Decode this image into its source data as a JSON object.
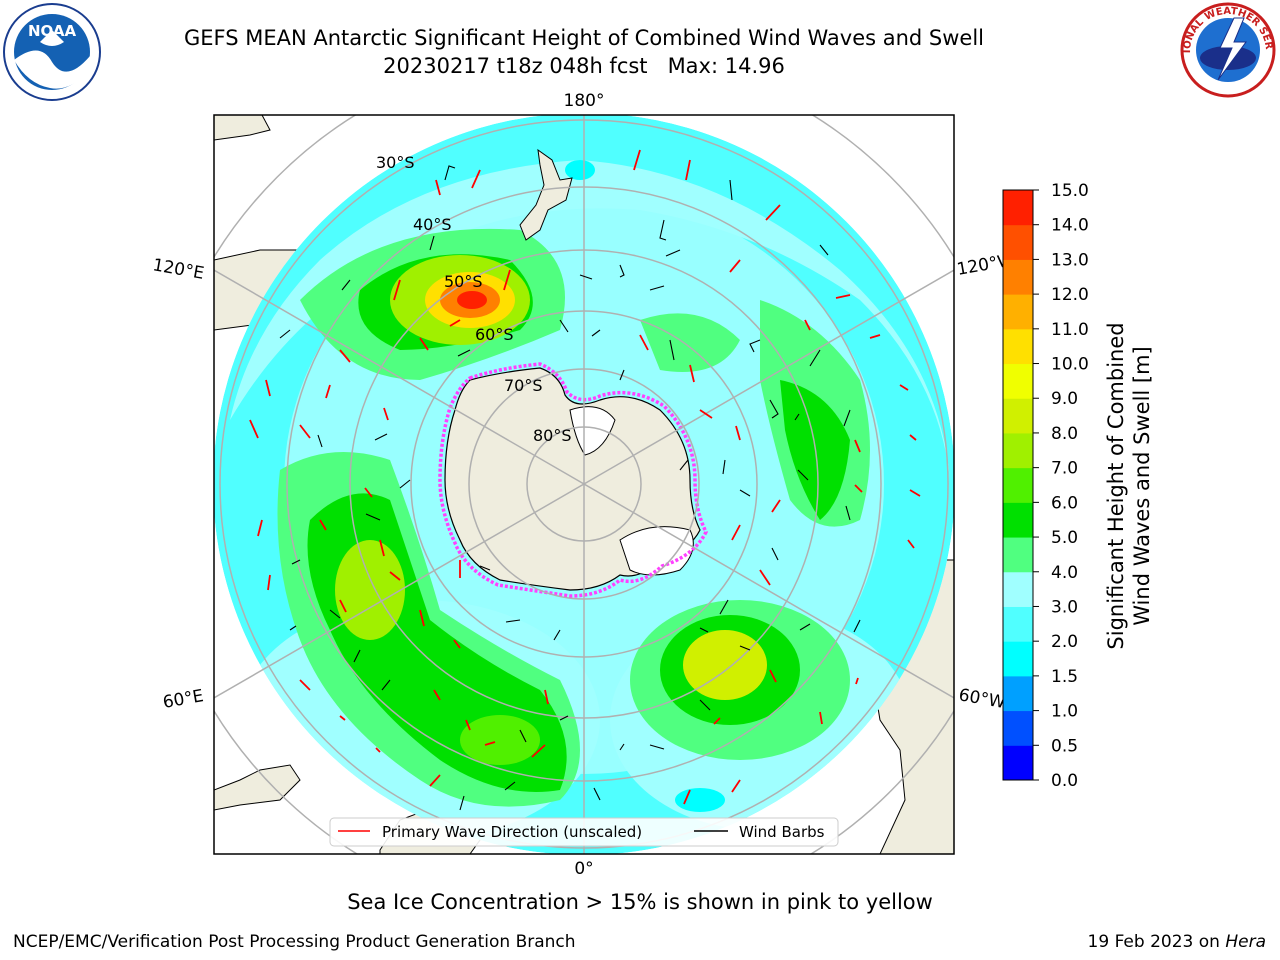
{
  "title": {
    "line1": "GEFS MEAN Antarctic Significant Height of Combined Wind Waves and Swell",
    "line2": "20230217 t18z 048h fcst   Max: 14.96"
  },
  "map": {
    "projection": "south polar stereographic",
    "lat_labels": [
      "30°S",
      "40°S",
      "50°S",
      "60°S",
      "70°S",
      "80°S"
    ],
    "lon_labels": {
      "top": "180°",
      "bottom": "0°",
      "left_upper": "120°E",
      "right_upper": "120°W",
      "left_lower": "60°E",
      "right_lower": "60°W"
    }
  },
  "legend": {
    "wave_label": "Primary Wave Direction (unscaled)",
    "barb_label": "Wind Barbs",
    "wave_color": "#ff0000",
    "barb_color": "#000000"
  },
  "colorbar": {
    "label_line1": "Significant Height of Combined",
    "label_line2": "Wind Waves and Swell [m]",
    "ticks": [
      "0.0",
      "0.5",
      "1.0",
      "1.5",
      "2.0",
      "3.0",
      "4.0",
      "5.0",
      "6.0",
      "7.0",
      "8.0",
      "9.0",
      "10.0",
      "11.0",
      "12.0",
      "13.0",
      "14.0",
      "15.0"
    ],
    "colors": [
      "#0000ff",
      "#0050ff",
      "#00a0ff",
      "#00ffff",
      "#50ffff",
      "#a0ffff",
      "#50ff80",
      "#00e000",
      "#50f000",
      "#a0f000",
      "#d0f000",
      "#f0ff00",
      "#ffe000",
      "#ffb000",
      "#ff8000",
      "#ff5000",
      "#ff2000",
      "#ff0000"
    ]
  },
  "footer": {
    "sea_ice": "Sea Ice Concentration > 15% is shown in pink to yellow",
    "credit": "NCEP/EMC/Verification Post Processing Product Generation Branch",
    "date": "19 Feb 2023 on",
    "machine": "Hera"
  },
  "logos": {
    "left_text": "NOAA",
    "right_text": "NATIONAL WEATHER SERVICE"
  }
}
